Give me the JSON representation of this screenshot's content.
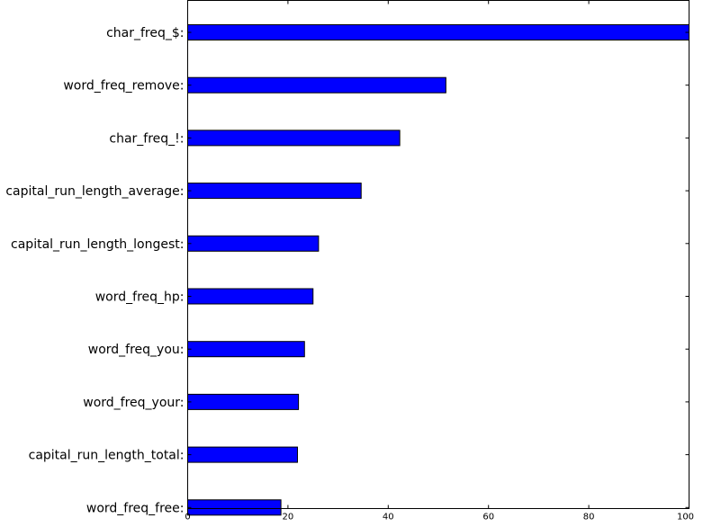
{
  "chart_data": {
    "type": "bar",
    "orientation": "horizontal",
    "categories": [
      "char_freq_$:",
      "word_freq_remove:",
      "char_freq_!:",
      "capital_run_length_average:",
      "capital_run_length_longest:",
      "word_freq_hp:",
      "word_freq_you:",
      "word_freq_your:",
      "capital_run_length_total:",
      "word_freq_free:"
    ],
    "values": [
      100,
      51.5,
      42.3,
      34.6,
      26.1,
      25.0,
      23.3,
      22.1,
      21.9,
      18.6
    ],
    "title": "",
    "xlabel": "",
    "ylabel": "",
    "xlim": [
      0,
      100
    ],
    "xticks": [
      "0",
      "20",
      "40",
      "60",
      "80",
      "100"
    ],
    "grid": false,
    "legend": "none",
    "bar_color": "#0000ff",
    "edge_color": "#000000"
  }
}
